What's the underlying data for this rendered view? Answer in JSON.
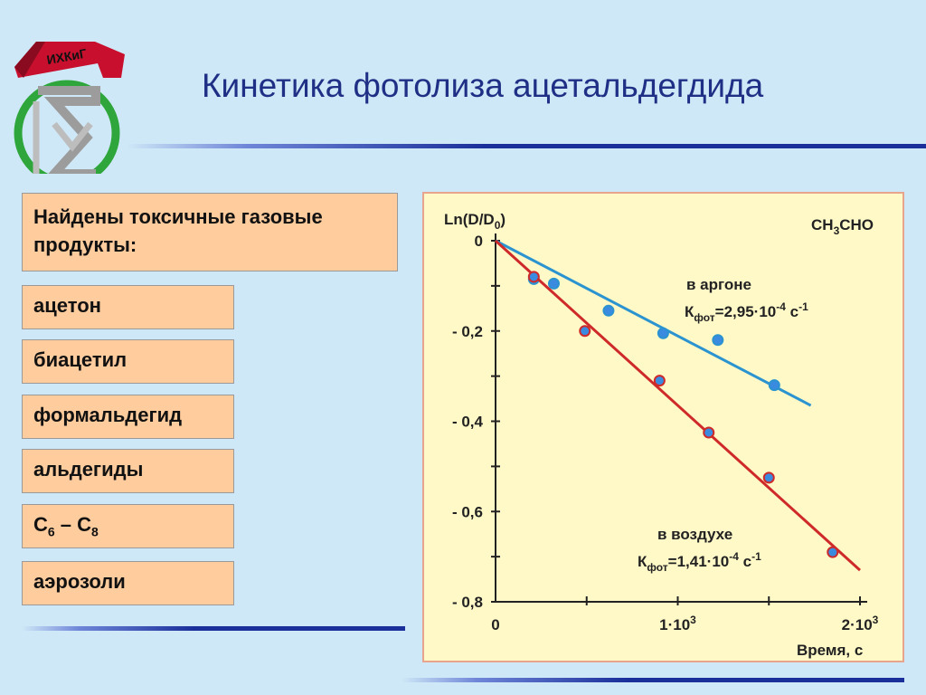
{
  "slide": {
    "title": "Кинетика фотолиза ацетальдегдида",
    "header": "Найдены токсичные газовые продукты:",
    "items": [
      "ацетон",
      "биацетил",
      "формальдегид",
      "альдегиды",
      "C6 – C8",
      "аэрозоли"
    ],
    "items_html": {
      "c6c8": {
        "a": "C",
        "a_sub": "6",
        "dash": " – ",
        "b": "C",
        "b_sub": "8"
      }
    }
  },
  "colors": {
    "background": "#cfe8f7",
    "title": "#1f2f86",
    "box_fill": "#ffcc9e",
    "chart_bg": "#fff9c8",
    "argon_line": "#2a93d0",
    "air_line": "#cf2a2a",
    "marker": "#3a8be0"
  },
  "logo": {
    "icon": "institute-logo-icon",
    "text": "ИХКиГ"
  },
  "chart_data": {
    "type": "scatter",
    "ylabel": {
      "base": "Ln(D/D",
      "sub": "0",
      "end": ")"
    },
    "xlabel": "Время, с",
    "compound": {
      "a": "CH",
      "sub": "3",
      "b": "CHO"
    },
    "xlim": [
      0,
      2000
    ],
    "ylim": [
      -0.8,
      0
    ],
    "x_ticks": [
      {
        "value": 0,
        "label": "0",
        "exp": ""
      },
      {
        "value": 1000,
        "label": "1·10",
        "exp": "3"
      },
      {
        "value": 2000,
        "label": "2·10",
        "exp": "3"
      }
    ],
    "x_minor_ticks": [
      500,
      1500
    ],
    "y_ticks": [
      {
        "value": 0,
        "label": "0"
      },
      {
        "value": -0.2,
        "label": "- 0,2"
      },
      {
        "value": -0.4,
        "label": "- 0,4"
      },
      {
        "value": -0.6,
        "label": "- 0,6"
      },
      {
        "value": -0.8,
        "label": "- 0,8"
      }
    ],
    "y_minor_ticks": [
      -0.1,
      -0.3,
      -0.5,
      -0.7
    ],
    "series": [
      {
        "key": "argon",
        "name": "в аргоне",
        "k_label": {
          "k": "К",
          "sub": "фот",
          "value": "=2,95·10",
          "exp": "-4",
          "unit": " с",
          "unit_exp": "-1"
        },
        "color": "#2a93d0",
        "points": [
          [
            210,
            -0.085
          ],
          [
            320,
            -0.095
          ],
          [
            620,
            -0.155
          ],
          [
            920,
            -0.205
          ],
          [
            1220,
            -0.22
          ],
          [
            1530,
            -0.32
          ]
        ],
        "fit": [
          [
            0,
            0
          ],
          [
            1730,
            -0.365
          ]
        ]
      },
      {
        "key": "air",
        "name": "в воздухе",
        "k_label": {
          "k": "К",
          "sub": "фот",
          "value": "=1,41·10",
          "exp": "-4",
          "unit": " с",
          "unit_exp": "-1"
        },
        "color": "#cf2a2a",
        "points": [
          [
            210,
            -0.08
          ],
          [
            490,
            -0.2
          ],
          [
            900,
            -0.31
          ],
          [
            1170,
            -0.425
          ],
          [
            1500,
            -0.525
          ],
          [
            1850,
            -0.69
          ]
        ],
        "fit": [
          [
            0,
            0
          ],
          [
            2000,
            -0.73
          ]
        ]
      }
    ]
  }
}
